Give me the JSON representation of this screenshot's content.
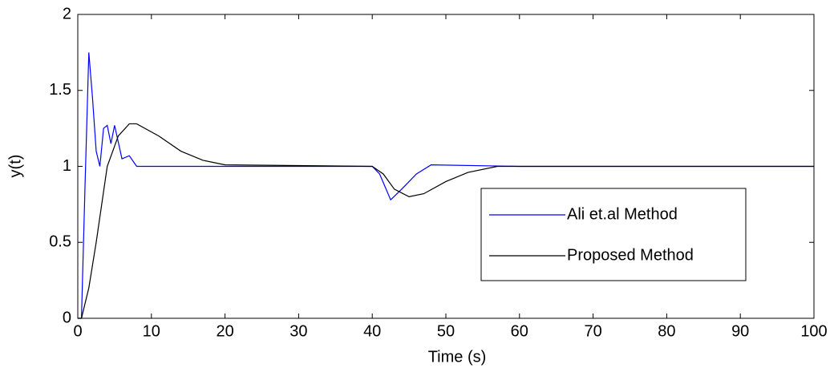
{
  "chart_data": {
    "type": "line",
    "x_label": "Time (s)",
    "y_label": "y(t)",
    "xlim": [
      0,
      100
    ],
    "ylim": [
      0,
      2
    ],
    "xticks": [
      0,
      10,
      20,
      30,
      40,
      50,
      60,
      70,
      80,
      90,
      100
    ],
    "yticks": [
      0,
      0.5,
      1,
      1.5,
      2
    ],
    "grid": false,
    "legend": "lower right",
    "series": [
      {
        "name": "Ali et.al Method",
        "color": "#0000ff",
        "x": [
          0,
          0.5,
          1,
          1.5,
          2,
          2.5,
          3,
          3.5,
          4,
          4.5,
          5,
          6,
          7,
          8,
          20,
          40,
          41,
          42.5,
          44,
          46,
          48,
          60,
          100
        ],
        "values": [
          0,
          0,
          0.9,
          1.75,
          1.45,
          1.1,
          1.0,
          1.25,
          1.27,
          1.15,
          1.27,
          1.05,
          1.07,
          1.0,
          1.0,
          1.0,
          0.95,
          0.78,
          0.85,
          0.95,
          1.01,
          1.0,
          1.0
        ]
      },
      {
        "name": "Proposed Method",
        "color": "#000000",
        "x": [
          0,
          0.5,
          1.5,
          2.5,
          4,
          5.5,
          7,
          8,
          11,
          14,
          17,
          20,
          40,
          41.5,
          43,
          45,
          47,
          50,
          53,
          57,
          100
        ],
        "values": [
          0,
          0,
          0.2,
          0.5,
          1.0,
          1.2,
          1.28,
          1.28,
          1.2,
          1.1,
          1.04,
          1.01,
          1.0,
          0.95,
          0.85,
          0.8,
          0.82,
          0.9,
          0.96,
          1.0,
          1.0
        ]
      }
    ]
  }
}
